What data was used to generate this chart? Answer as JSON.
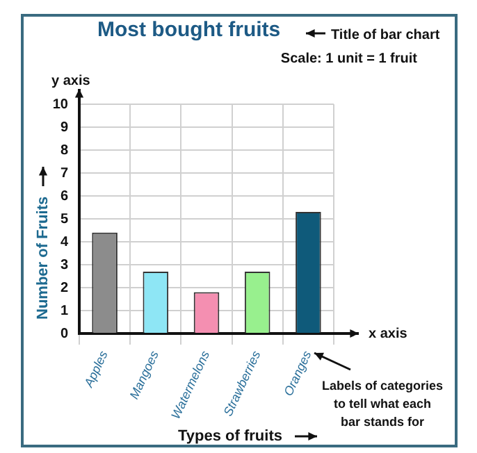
{
  "chart_data": {
    "type": "bar",
    "title": "Most bought fruits",
    "xlabel": "Types of fruits",
    "ylabel": "Number of Fruits",
    "categories": [
      "Apples",
      "Mangoes",
      "Watermelons",
      "Strawberries",
      "Oranges"
    ],
    "values": [
      4.4,
      2.7,
      1.8,
      2.7,
      5.3
    ],
    "colors": [
      "#8c8c8c",
      "#8ee6f5",
      "#f48fb1",
      "#98f08e",
      "#0f5a7a"
    ],
    "ylim": [
      0,
      10
    ],
    "yticks": [
      0,
      1,
      2,
      3,
      4,
      5,
      6,
      7,
      8,
      9,
      10
    ],
    "grid": true,
    "annotations": [
      "Title of bar chart",
      "Scale: 1 unit = 1 fruit",
      "y axis",
      "x axis",
      "Labels of categories to tell what each bar stands for"
    ]
  }
}
